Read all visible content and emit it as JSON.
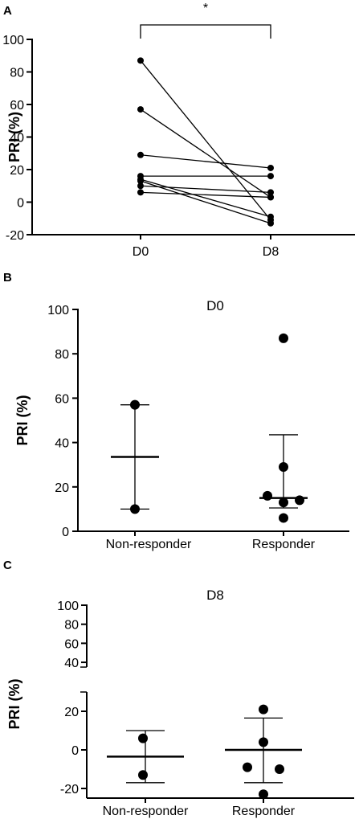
{
  "chart_data": [
    {
      "panel": "A",
      "type": "line",
      "ylabel": "PRI (%)",
      "ylim": [
        -20,
        100
      ],
      "yticks": [
        -20,
        0,
        20,
        40,
        60,
        80,
        100
      ],
      "categories": [
        "D0",
        "D8"
      ],
      "series": [
        {
          "values": [
            87,
            -11
          ]
        },
        {
          "values": [
            57,
            3
          ]
        },
        {
          "values": [
            29,
            21
          ]
        },
        {
          "values": [
            16,
            16
          ]
        },
        {
          "values": [
            13,
            -13
          ]
        },
        {
          "values": [
            10,
            6
          ]
        },
        {
          "values": [
            14,
            -9
          ]
        },
        {
          "values": [
            6,
            3
          ]
        }
      ],
      "significance": "*"
    },
    {
      "panel": "B",
      "type": "scatter",
      "title": "D0",
      "ylabel": "PRI (%)",
      "ylim": [
        0,
        100
      ],
      "yticks": [
        0,
        20,
        40,
        60,
        80,
        100
      ],
      "categories": [
        "Non-responder",
        "Responder"
      ],
      "groups": [
        {
          "name": "Non-responder",
          "points": [
            57,
            10
          ],
          "mean": 33.5,
          "sd_upper": 57,
          "sd_lower": 10
        },
        {
          "name": "Responder",
          "points": [
            87,
            29,
            16,
            13,
            14,
            6
          ],
          "mean": 15,
          "sd_upper": 43.5,
          "sd_lower": 10.5
        }
      ]
    },
    {
      "panel": "C",
      "type": "scatter",
      "title": "D8",
      "ylabel": "PRI (%)",
      "ylim": [
        -20,
        100
      ],
      "axis_break": [
        30,
        35
      ],
      "yticks": [
        -20,
        0,
        20,
        40,
        60,
        80,
        100
      ],
      "categories": [
        "Non-responder",
        "Responder"
      ],
      "groups": [
        {
          "name": "Non-responder",
          "points": [
            6,
            -13
          ],
          "mean": -3.5,
          "sd_upper": 10,
          "sd_lower": -17
        },
        {
          "name": "Responder",
          "points": [
            21,
            4,
            -9,
            -10,
            -23,
            14
          ],
          "mean": 0,
          "sd_upper": 16.5,
          "sd_lower": -17
        }
      ]
    }
  ]
}
